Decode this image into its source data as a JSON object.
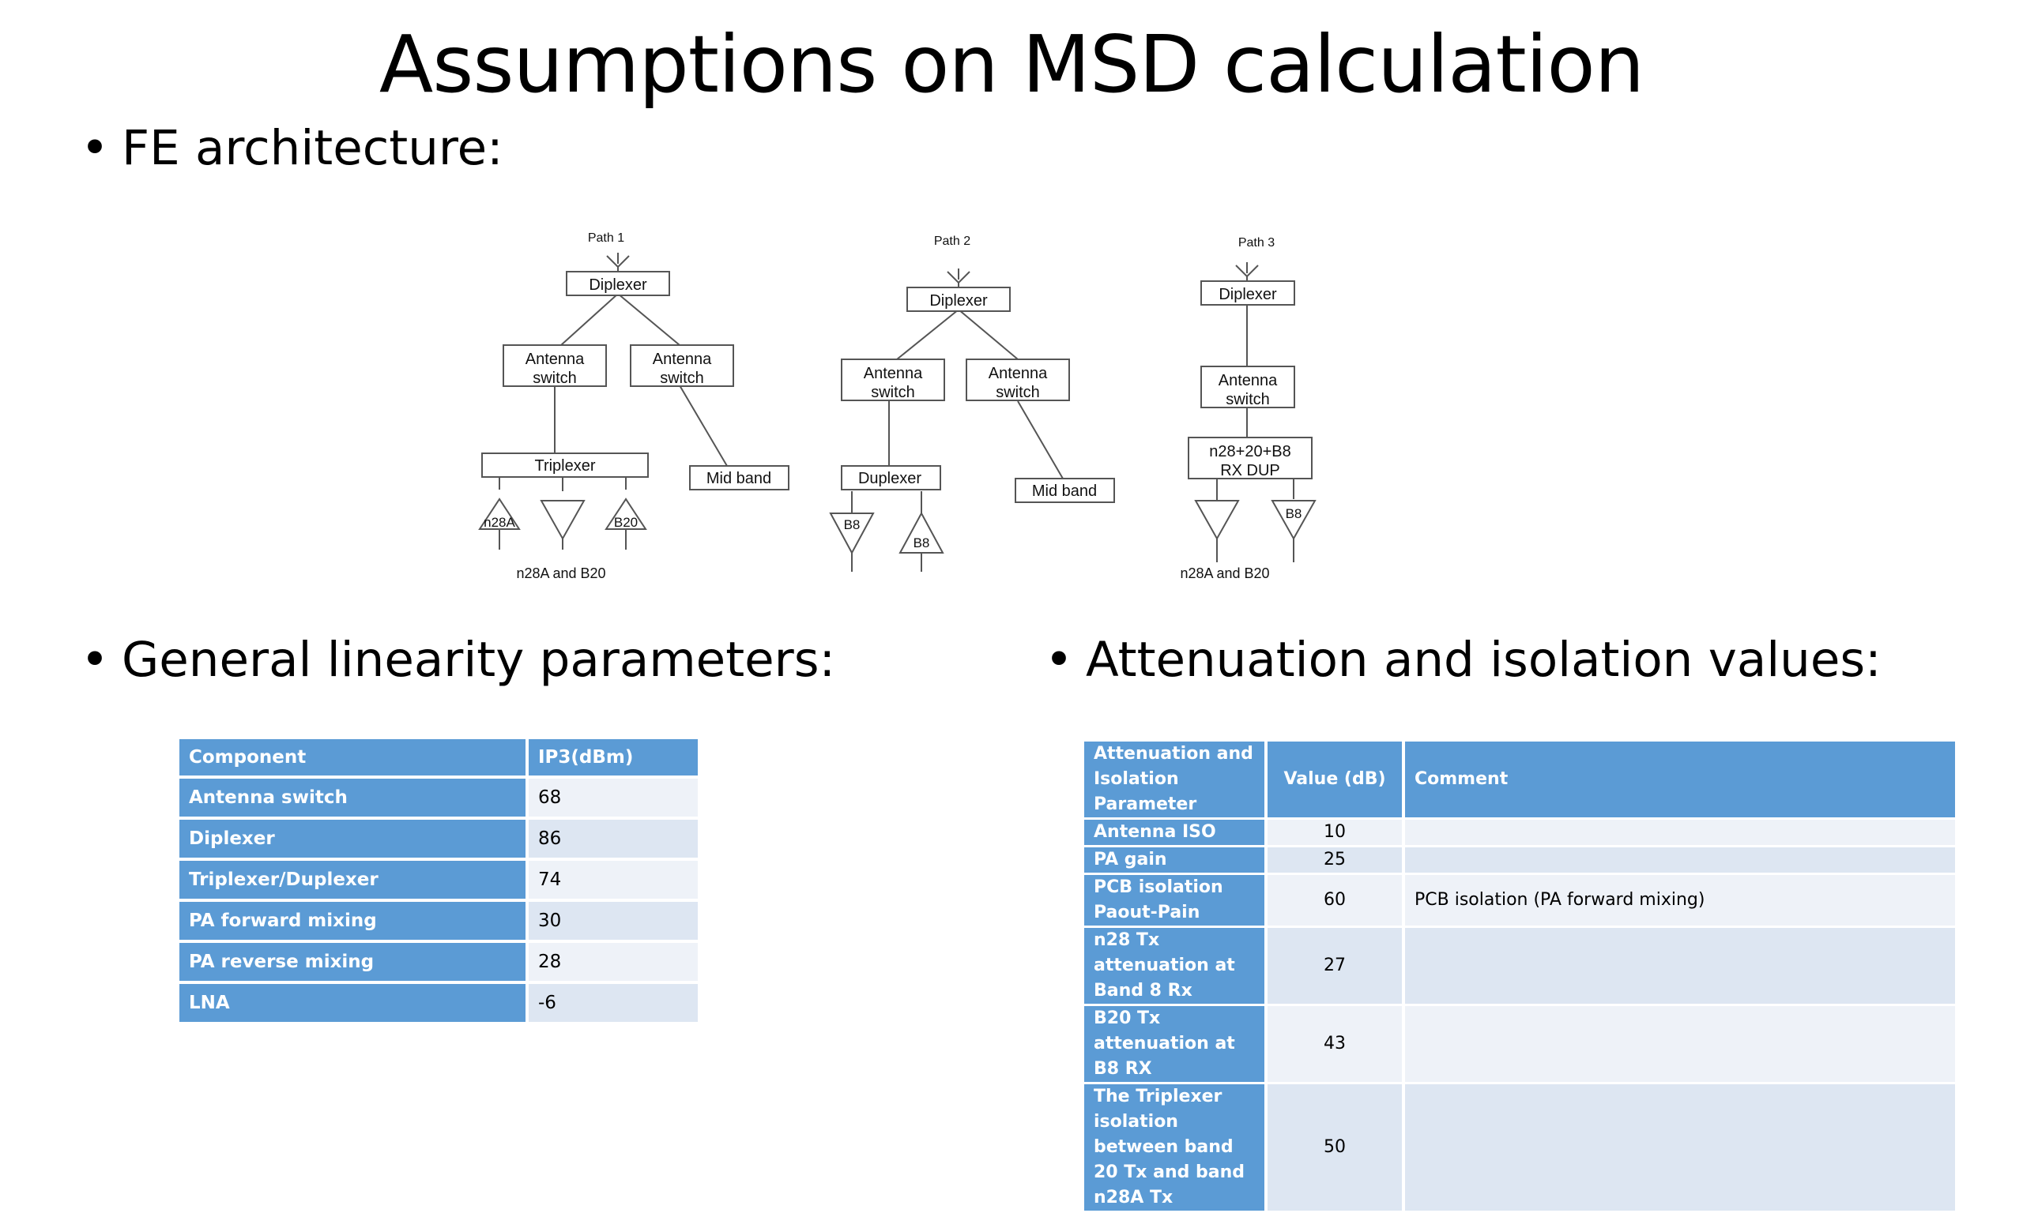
{
  "title": "Assumptions on MSD calculation",
  "bullets": {
    "fe": "FE architecture:",
    "linearity": "General linearity parameters:",
    "attenuation": "Attenuation and isolation values:"
  },
  "diagram": {
    "path1": {
      "label": "Path 1",
      "diplexer": "Diplexer",
      "switch_a": [
        "Antenna",
        "switch"
      ],
      "switch_b": [
        "Antenna",
        "switch"
      ],
      "triplexer": "Triplexer",
      "mid_band": "Mid band",
      "amp_left": "n28A",
      "amp_right": "B20",
      "caption": "n28A and B20"
    },
    "path2": {
      "label": "Path 2",
      "diplexer": "Diplexer",
      "switch_a": [
        "Antenna",
        "switch"
      ],
      "switch_b": [
        "Antenna",
        "switch"
      ],
      "duplexer": "Duplexer",
      "mid_band": "Mid band",
      "amp_left": "B8",
      "amp_right": "B8"
    },
    "path3": {
      "label": "Path 3",
      "diplexer": "Diplexer",
      "switch": [
        "Antenna",
        "switch"
      ],
      "dup": [
        "n28+20+B8",
        "RX DUP"
      ],
      "amp_right": "B8",
      "caption": "n28A and B20"
    }
  },
  "linearity_table": {
    "headers": [
      "Component",
      "IP3(dBm)"
    ],
    "rows": [
      [
        "Antenna switch",
        "68"
      ],
      [
        "Diplexer",
        "86"
      ],
      [
        "Triplexer/Duplexer",
        "74"
      ],
      [
        "PA forward mixing",
        "30"
      ],
      [
        "PA reverse mixing",
        "28"
      ],
      [
        "LNA",
        "-6"
      ]
    ]
  },
  "attenuation_table": {
    "headers": [
      "Attenuation and Isolation Parameter",
      "Value (dB)",
      "Comment"
    ],
    "rows": [
      [
        "Antenna ISO",
        "10",
        ""
      ],
      [
        "PA gain",
        "25",
        ""
      ],
      [
        "PCB isolation Paout-Pain",
        "60",
        "PCB isolation (PA forward mixing)"
      ],
      [
        "n28 Tx attenuation at Band 8 Rx",
        "27",
        ""
      ],
      [
        "B20 Tx attenuation at B8 RX",
        "43",
        ""
      ],
      [
        "The Triplexer isolation between band 20 Tx and band n28A Tx",
        "50",
        ""
      ]
    ]
  },
  "colors": {
    "header_blue": "#5b9bd5",
    "row_light": "#eef2f8",
    "row_alt": "#dde6f2"
  }
}
